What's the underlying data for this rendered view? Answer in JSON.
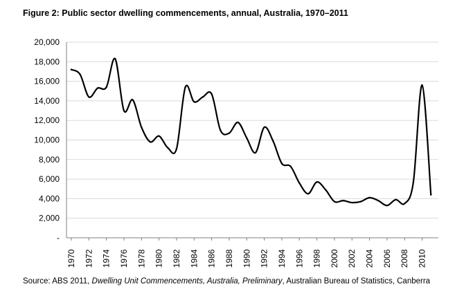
{
  "title": "Figure 2: Public sector dwelling commencements, annual, Australia, 1970–2011",
  "source": {
    "prefix": "Source: ABS 2011, ",
    "italic1": "Dwelling Unit Commencements, Australia, Preliminary",
    "suffix": ", Australian Bureau of Statistics, Canberra"
  },
  "chart_data": {
    "type": "line",
    "title": "Figure 2: Public sector dwelling commencements, annual, Australia, 1970–2011",
    "xlabel": "",
    "ylabel": "",
    "ylim": [
      0,
      20000
    ],
    "yticks": [
      "-",
      "2,000",
      "4,000",
      "6,000",
      "8,000",
      "10,000",
      "12,000",
      "14,000",
      "16,000",
      "18,000",
      "20,000"
    ],
    "xtick_labels": [
      "1970",
      "1972",
      "1974",
      "1976",
      "1978",
      "1980",
      "1982",
      "1984",
      "1986",
      "1988",
      "1990",
      "1992",
      "1994",
      "1996",
      "1998",
      "2000",
      "2002",
      "2004",
      "2006",
      "2008",
      "2010"
    ],
    "grid": true,
    "line_color": "#000000",
    "x": [
      1970,
      1971,
      1972,
      1973,
      1974,
      1975,
      1976,
      1977,
      1978,
      1979,
      1980,
      1981,
      1982,
      1983,
      1984,
      1985,
      1986,
      1987,
      1988,
      1989,
      1990,
      1991,
      1992,
      1993,
      1994,
      1995,
      1996,
      1997,
      1998,
      1999,
      2000,
      2001,
      2002,
      2003,
      2004,
      2005,
      2006,
      2007,
      2008,
      2009,
      2010,
      2011
    ],
    "series": [
      {
        "values": [
          17200,
          16700,
          14400,
          15300,
          15400,
          18300,
          13000,
          14100,
          11300,
          9800,
          10400,
          9200,
          9100,
          15400,
          13900,
          14400,
          14700,
          11000,
          10700,
          11800,
          10200,
          8700,
          11300,
          9900,
          7600,
          7300,
          5600,
          4500,
          5700,
          4900,
          3700,
          3800,
          3600,
          3700,
          4100,
          3800,
          3300,
          3900,
          3500,
          5700,
          15600,
          4400
        ]
      }
    ]
  }
}
